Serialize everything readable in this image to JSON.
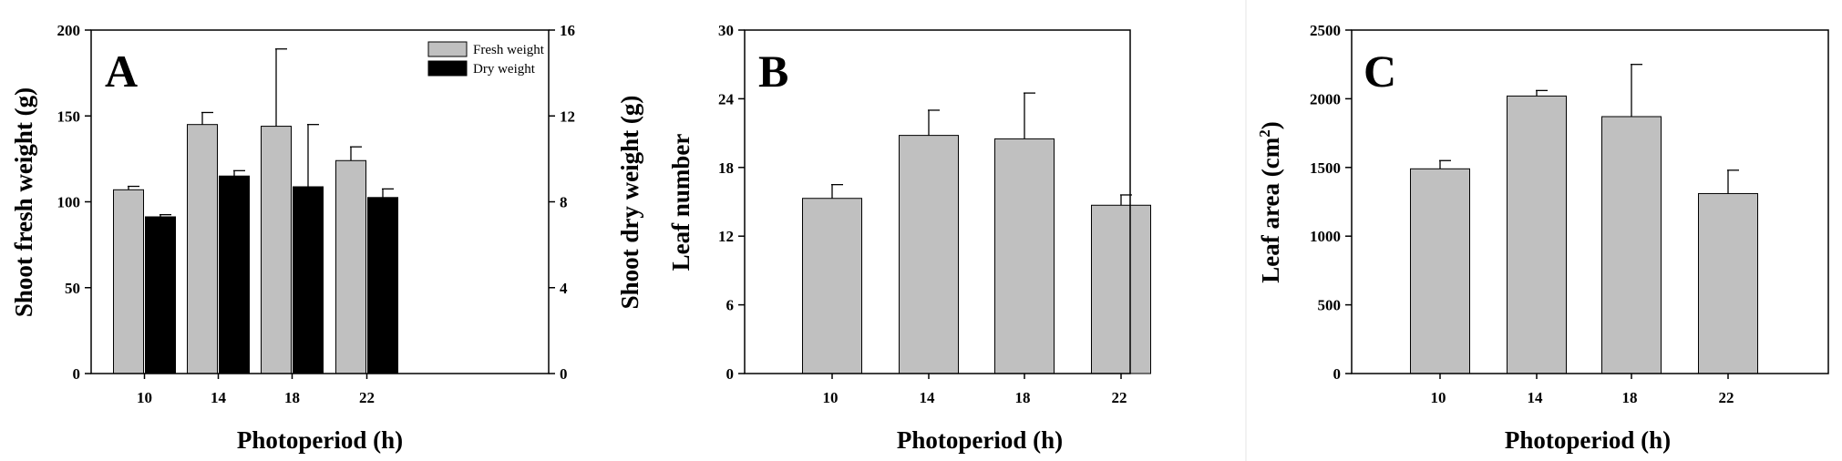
{
  "chart_data": [
    {
      "type": "bar",
      "panel_label": "A",
      "categories": [
        "10",
        "14",
        "18",
        "22"
      ],
      "xlabel": "Photoperiod (h)",
      "ylabel": "Shoot fresh weight (g)",
      "ylabel_right": "Shoot dry weight (g)",
      "ylim": [
        0,
        200
      ],
      "ylim_right": [
        0,
        16
      ],
      "yticks": [
        0,
        50,
        100,
        150,
        200
      ],
      "yticks_right": [
        0,
        4,
        8,
        12,
        16
      ],
      "legend_position": "top-right",
      "series": [
        {
          "name": "Fresh weight",
          "axis": "left",
          "color": "#c0c0c0",
          "values": [
            107,
            145,
            144,
            124
          ],
          "errors": [
            2,
            7,
            45,
            8
          ]
        },
        {
          "name": "Dry weight",
          "axis": "right",
          "color": "#000000",
          "values": [
            7.3,
            9.2,
            8.7,
            8.2
          ],
          "errors": [
            0.1,
            0.25,
            2.9,
            0.4
          ]
        }
      ]
    },
    {
      "type": "bar",
      "panel_label": "B",
      "categories": [
        "10",
        "14",
        "18",
        "22"
      ],
      "xlabel": "Photoperiod (h)",
      "ylabel": "Leaf number",
      "ylim": [
        0,
        30
      ],
      "yticks": [
        0,
        6,
        12,
        18,
        24,
        30
      ],
      "series": [
        {
          "axis": "left",
          "color": "#c0c0c0",
          "values": [
            15.3,
            20.8,
            20.5,
            14.7
          ],
          "errors": [
            1.2,
            2.2,
            4.0,
            0.9
          ]
        }
      ]
    },
    {
      "type": "bar",
      "panel_label": "C",
      "categories": [
        "10",
        "14",
        "18",
        "22"
      ],
      "xlabel": "Photoperiod (h)",
      "ylabel": "Leaf area (cm",
      "ylabel_sup": "2",
      "ylabel_suffix": ")",
      "ylim": [
        0,
        2500
      ],
      "yticks": [
        0,
        500,
        1000,
        1500,
        2000,
        2500
      ],
      "series": [
        {
          "axis": "left",
          "color": "#c0c0c0",
          "values": [
            1490,
            2020,
            1870,
            1310
          ],
          "errors": [
            60,
            40,
            380,
            170
          ]
        }
      ]
    }
  ]
}
